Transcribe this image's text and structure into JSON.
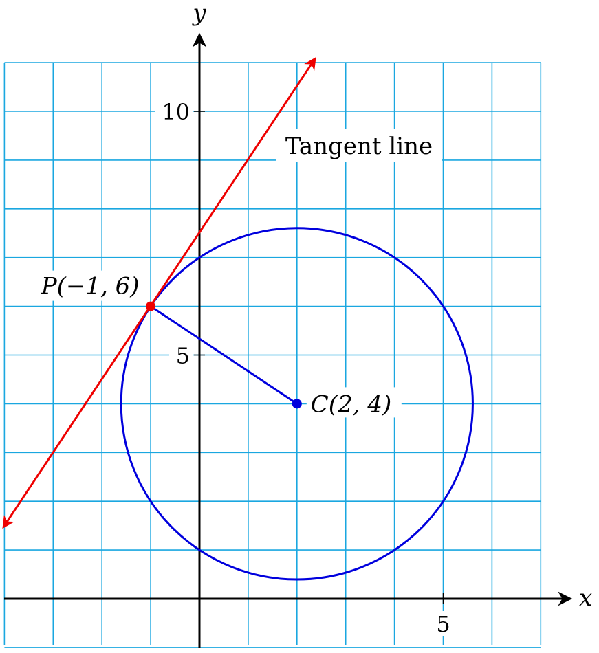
{
  "colors": {
    "grid": "#1aa7e0",
    "axes": "#000000",
    "circle": "#0000dd",
    "radius": "#0000dd",
    "tangent": "#ee0000",
    "point_P": "#ee0000",
    "point_C": "#0000dd",
    "label_bg": "#ffffff"
  },
  "chart_data": {
    "type": "diagram",
    "xlim": [
      -4,
      7
    ],
    "ylim": [
      -1,
      11
    ],
    "grid": true,
    "axes": {
      "x_label": "x",
      "y_label": "y"
    },
    "ticks": {
      "x": [
        {
          "value": 5,
          "label": "5"
        }
      ],
      "y": [
        {
          "value": 5,
          "label": "5"
        },
        {
          "value": 10,
          "label": "10"
        }
      ]
    },
    "circle": {
      "center": [
        2,
        4
      ],
      "radius": 3.6056
    },
    "points": {
      "P": {
        "x": -1,
        "y": 6,
        "label": "P(−1, 6)"
      },
      "C": {
        "x": 2,
        "y": 4,
        "label": "C(2, 4)"
      }
    },
    "tangent_line": {
      "label": "Tangent line",
      "slope": 1.5,
      "through": [
        -1,
        6
      ],
      "from": [
        -4,
        1.5
      ],
      "to": [
        2.35,
        11.05
      ]
    }
  }
}
